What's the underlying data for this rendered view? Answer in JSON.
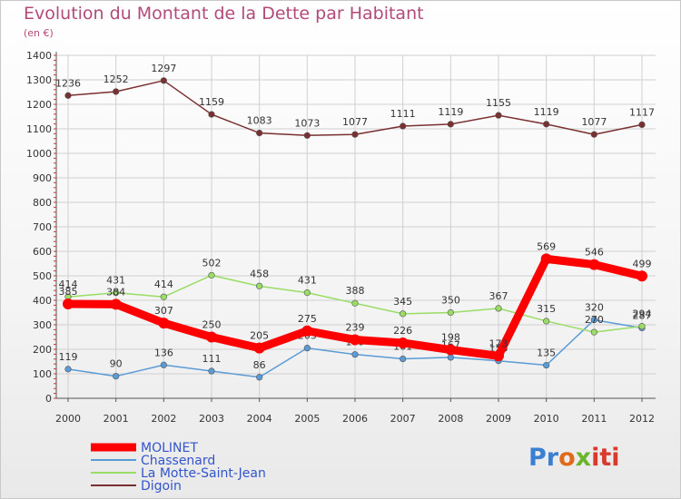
{
  "chart_data": {
    "type": "line",
    "title": "Evolution du Montant de la Dette par Habitant",
    "subtitle": "(en €)",
    "xlabel": "",
    "ylabel": "",
    "x": [
      "2000",
      "2001",
      "2002",
      "2003",
      "2004",
      "2005",
      "2006",
      "2007",
      "2008",
      "2009",
      "2010",
      "2011",
      "2012"
    ],
    "ylim": [
      0,
      1400
    ],
    "yticks": [
      0,
      100,
      200,
      300,
      400,
      500,
      600,
      700,
      800,
      900,
      1000,
      1100,
      1200,
      1300,
      1400
    ],
    "grid": true,
    "legend_position": "bottom-left",
    "series": [
      {
        "name": "MOLINET",
        "color": "#ff0000",
        "emphasis": true,
        "values": [
          385,
          384,
          307,
          250,
          205,
          275,
          239,
          226,
          198,
          173,
          569,
          546,
          499
        ]
      },
      {
        "name": "Chassenard",
        "color": "#5b9bd5",
        "values": [
          119,
          90,
          136,
          111,
          86,
          205,
          179,
          161,
          167,
          153,
          135,
          320,
          287
        ]
      },
      {
        "name": "La Motte-Saint-Jean",
        "color": "#99dd66",
        "values": [
          414,
          431,
          414,
          502,
          458,
          431,
          388,
          345,
          350,
          367,
          315,
          270,
          294
        ]
      },
      {
        "name": "Digoin",
        "color": "#7a3030",
        "values": [
          1236,
          1252,
          1297,
          1159,
          1083,
          1073,
          1077,
          1111,
          1119,
          1155,
          1119,
          1077,
          1117
        ]
      }
    ]
  },
  "logo": {
    "p1": "Pr",
    "p2": "o",
    "p3": "x",
    "p4": "iti"
  },
  "colors": {
    "title": "#b24a7a",
    "grid": "#d0d0d0"
  }
}
